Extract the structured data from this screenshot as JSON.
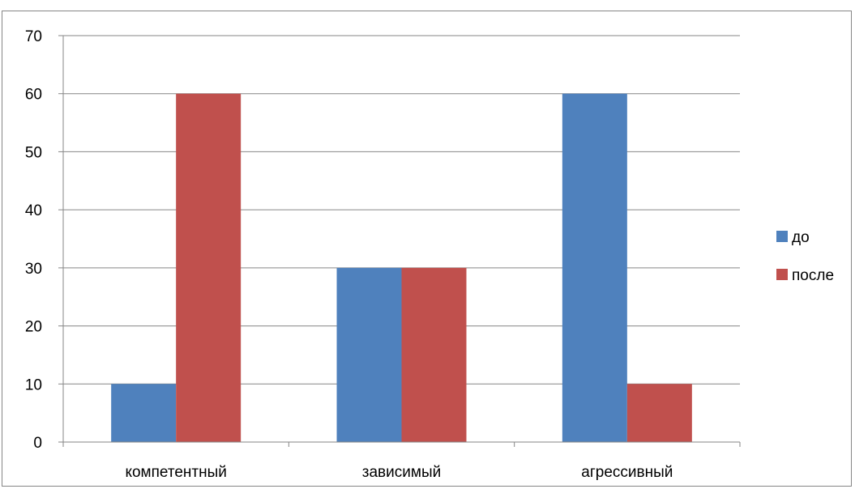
{
  "chart_data": {
    "type": "bar",
    "categories": [
      "компетентный",
      "зависимый",
      "агрессивный"
    ],
    "series": [
      {
        "name": "до",
        "values": [
          10,
          30,
          60
        ],
        "color": "#4F81BD"
      },
      {
        "name": "после",
        "values": [
          60,
          30,
          10
        ],
        "color": "#C0504D"
      }
    ],
    "ylim": [
      0,
      70
    ],
    "yticks": [
      0,
      10,
      20,
      30,
      40,
      50,
      60,
      70
    ],
    "ytick_labels": [
      "0",
      "10",
      "20",
      "30",
      "40",
      "50",
      "60",
      "70"
    ],
    "grid": true,
    "legend_position": "right"
  }
}
